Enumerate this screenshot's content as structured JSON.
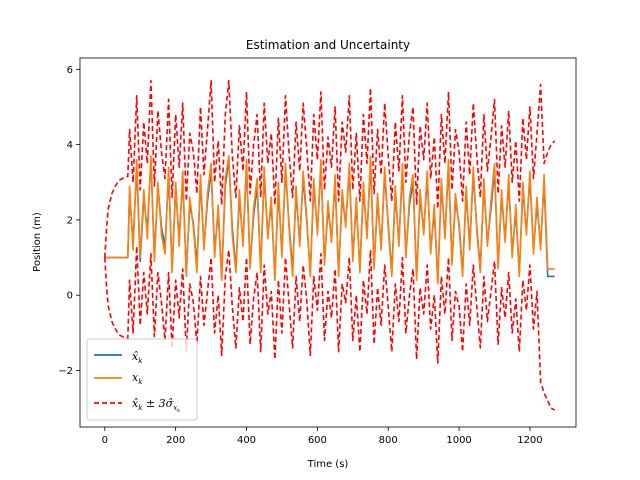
{
  "chart_data": {
    "type": "line",
    "title": "Estimation and Uncertainty",
    "xlabel": "Time (s)",
    "ylabel": "Position (m)",
    "xlim": [
      -70,
      1330
    ],
    "ylim": [
      -3.5,
      6.3
    ],
    "x_ticks": [
      0,
      200,
      400,
      600,
      800,
      1000,
      1200
    ],
    "y_ticks": [
      -2,
      0,
      2,
      4,
      6
    ],
    "grid": false,
    "legend_position": "lower-left",
    "series": [
      {
        "name": "x̂_k",
        "color": "#1f77b4",
        "style": "solid",
        "x": [
          0,
          65,
          70,
          80,
          90,
          100,
          110,
          120,
          130,
          140,
          150,
          160,
          170,
          180,
          190,
          200,
          210,
          220,
          230,
          240,
          250,
          260,
          270,
          280,
          290,
          300,
          310,
          320,
          330,
          340,
          350,
          360,
          370,
          380,
          390,
          400,
          410,
          420,
          430,
          440,
          450,
          460,
          470,
          480,
          490,
          500,
          510,
          520,
          530,
          540,
          550,
          560,
          570,
          580,
          590,
          600,
          610,
          620,
          630,
          640,
          650,
          660,
          670,
          680,
          690,
          700,
          710,
          720,
          730,
          740,
          750,
          760,
          770,
          780,
          790,
          800,
          810,
          820,
          830,
          840,
          850,
          860,
          870,
          880,
          890,
          900,
          910,
          920,
          930,
          940,
          950,
          960,
          970,
          980,
          990,
          1000,
          1010,
          1020,
          1030,
          1040,
          1050,
          1060,
          1070,
          1080,
          1090,
          1100,
          1110,
          1120,
          1130,
          1140,
          1150,
          1160,
          1170,
          1180,
          1190,
          1200,
          1210,
          1220,
          1230,
          1240,
          1250,
          1260,
          1270
        ],
        "y": [
          1.0,
          1.0,
          2.7,
          1.4,
          3.4,
          0.9,
          2.6,
          1.7,
          3.6,
          1.0,
          2.9,
          1.8,
          1.3,
          3.2,
          0.7,
          2.8,
          1.5,
          3.1,
          0.6,
          2.4,
          1.9,
          0.8,
          3.0,
          1.3,
          2.5,
          3.3,
          1.2,
          2.2,
          0.5,
          2.9,
          3.6,
          1.8,
          0.7,
          2.6,
          1.4,
          3.4,
          0.8,
          2.1,
          2.9,
          0.7,
          3.2,
          1.6,
          2.4,
          0.5,
          2.8,
          1.1,
          3.3,
          1.9,
          0.7,
          2.7,
          1.4,
          3.1,
          2.0,
          0.6,
          2.9,
          1.7,
          3.4,
          0.9,
          2.3,
          1.5,
          3.0,
          0.6,
          2.6,
          1.9,
          3.3,
          1.0,
          2.4,
          0.7,
          2.8,
          1.6,
          3.5,
          0.8,
          2.5,
          1.3,
          3.2,
          1.9,
          0.6,
          2.7,
          1.4,
          3.3,
          1.1,
          2.4,
          3.0,
          0.5,
          2.6,
          1.7,
          3.1,
          1.2,
          2.2,
          0.4,
          2.9,
          1.6,
          3.4,
          0.9,
          2.5,
          1.9,
          0.6,
          2.7,
          1.3,
          3.2,
          1.8,
          0.7,
          2.9,
          1.4,
          2.3,
          3.3,
          0.8,
          2.6,
          1.5,
          3.0,
          1.1,
          2.2,
          0.6,
          2.8,
          1.7,
          3.1,
          1.2,
          2.4,
          1.3,
          3.0,
          0.5,
          0.5,
          0.5
        ],
        "y_label_text": "x̂",
        "y_label_sub": "k"
      },
      {
        "name": "x_k",
        "color": "#ff7f0e",
        "style": "solid",
        "x": [
          0,
          65,
          70,
          80,
          90,
          100,
          110,
          120,
          130,
          140,
          150,
          160,
          170,
          180,
          190,
          200,
          210,
          220,
          230,
          240,
          250,
          260,
          270,
          280,
          290,
          300,
          310,
          320,
          330,
          340,
          350,
          360,
          370,
          380,
          390,
          400,
          410,
          420,
          430,
          440,
          450,
          460,
          470,
          480,
          490,
          500,
          510,
          520,
          530,
          540,
          550,
          560,
          570,
          580,
          590,
          600,
          610,
          620,
          630,
          640,
          650,
          660,
          670,
          680,
          690,
          700,
          710,
          720,
          730,
          740,
          750,
          760,
          770,
          780,
          790,
          800,
          810,
          820,
          830,
          840,
          850,
          860,
          870,
          880,
          890,
          900,
          910,
          920,
          930,
          940,
          950,
          960,
          970,
          980,
          990,
          1000,
          1010,
          1020,
          1030,
          1040,
          1050,
          1060,
          1070,
          1080,
          1090,
          1100,
          1110,
          1120,
          1130,
          1140,
          1150,
          1160,
          1170,
          1180,
          1190,
          1200,
          1210,
          1220,
          1230,
          1240,
          1250,
          1260,
          1270
        ],
        "y": [
          1.0,
          1.0,
          2.9,
          1.2,
          3.6,
          1.0,
          2.8,
          1.5,
          3.7,
          0.9,
          3.0,
          1.6,
          1.1,
          3.4,
          0.6,
          3.0,
          1.3,
          3.3,
          0.5,
          2.6,
          1.8,
          0.6,
          3.2,
          1.2,
          2.7,
          3.5,
          1.0,
          2.4,
          0.4,
          3.1,
          3.7,
          1.6,
          0.6,
          2.8,
          1.3,
          3.6,
          0.7,
          2.3,
          3.1,
          0.6,
          3.4,
          1.5,
          2.6,
          0.4,
          3.0,
          1.0,
          3.5,
          1.8,
          0.5,
          2.9,
          1.3,
          3.3,
          2.1,
          0.5,
          3.1,
          1.6,
          3.6,
          0.8,
          2.5,
          1.4,
          3.2,
          0.5,
          2.8,
          1.8,
          3.5,
          0.9,
          2.6,
          0.6,
          3.0,
          1.5,
          3.7,
          0.7,
          2.7,
          1.2,
          3.4,
          1.8,
          0.5,
          2.9,
          1.3,
          3.5,
          1.0,
          2.6,
          3.2,
          0.4,
          2.8,
          1.6,
          3.3,
          1.1,
          2.4,
          0.3,
          3.1,
          1.5,
          3.6,
          0.8,
          2.7,
          1.8,
          0.5,
          2.9,
          1.2,
          3.4,
          1.7,
          0.6,
          3.1,
          1.3,
          2.5,
          3.5,
          0.7,
          2.8,
          1.4,
          3.2,
          1.0,
          2.4,
          0.5,
          3.0,
          1.6,
          3.3,
          1.1,
          2.6,
          1.2,
          3.2,
          0.7,
          0.7,
          0.7
        ],
        "y_label_text": "x",
        "y_label_sub": "k"
      },
      {
        "name": "x̂_k ± 3σ̂_{x_k}",
        "color": "#ff0000",
        "style": "dashed",
        "x_upper": [
          0,
          5,
          10,
          20,
          30,
          40,
          50,
          60,
          65,
          70,
          80,
          90,
          100,
          110,
          120,
          130,
          140,
          150,
          160,
          170,
          180,
          190,
          200,
          210,
          220,
          230,
          240,
          250,
          260,
          270,
          280,
          290,
          300,
          310,
          320,
          330,
          340,
          350,
          360,
          370,
          380,
          390,
          400,
          410,
          420,
          430,
          440,
          450,
          460,
          470,
          480,
          490,
          500,
          510,
          520,
          530,
          540,
          550,
          560,
          570,
          580,
          590,
          600,
          610,
          620,
          630,
          640,
          650,
          660,
          670,
          680,
          690,
          700,
          710,
          720,
          730,
          740,
          750,
          760,
          770,
          780,
          790,
          800,
          810,
          820,
          830,
          840,
          850,
          860,
          870,
          880,
          890,
          900,
          910,
          920,
          930,
          940,
          950,
          960,
          970,
          980,
          990,
          1000,
          1010,
          1020,
          1030,
          1040,
          1050,
          1060,
          1070,
          1080,
          1090,
          1100,
          1110,
          1120,
          1130,
          1140,
          1150,
          1160,
          1170,
          1180,
          1190,
          1200,
          1210,
          1220,
          1230,
          1240,
          1250,
          1260,
          1270
        ],
        "y_upper": [
          1.0,
          1.8,
          2.3,
          2.7,
          2.9,
          3.05,
          3.1,
          3.15,
          3.15,
          4.4,
          3.0,
          5.3,
          2.8,
          4.6,
          3.5,
          5.7,
          2.9,
          4.9,
          3.8,
          3.1,
          5.2,
          2.6,
          4.8,
          3.4,
          5.1,
          2.5,
          4.3,
          3.8,
          2.7,
          5.0,
          3.2,
          4.4,
          5.7,
          3.0,
          4.1,
          2.4,
          4.8,
          5.7,
          3.7,
          2.6,
          4.5,
          3.3,
          5.4,
          2.7,
          4.0,
          4.8,
          2.6,
          5.1,
          3.5,
          4.3,
          2.4,
          4.7,
          3.0,
          5.3,
          3.8,
          2.6,
          4.6,
          3.3,
          5.1,
          3.9,
          2.5,
          4.8,
          3.6,
          5.4,
          2.8,
          4.2,
          3.4,
          5.0,
          2.5,
          4.6,
          3.8,
          5.3,
          2.8,
          4.3,
          2.5,
          4.8,
          3.5,
          5.5,
          2.7,
          4.4,
          3.2,
          5.1,
          3.7,
          2.5,
          4.6,
          3.3,
          5.3,
          3.0,
          4.3,
          5.0,
          2.4,
          4.5,
          3.6,
          5.1,
          3.1,
          4.2,
          2.3,
          4.8,
          3.5,
          5.4,
          2.8,
          4.4,
          3.8,
          2.5,
          4.6,
          3.2,
          5.1,
          3.7,
          2.6,
          4.8,
          3.3,
          4.2,
          5.2,
          2.7,
          4.5,
          3.4,
          4.9,
          3.0,
          4.1,
          2.5,
          4.7,
          3.6,
          5.0,
          3.1,
          4.3,
          5.6,
          3.5,
          3.8,
          4.0,
          4.1
        ],
        "x_lower": [
          0,
          5,
          10,
          20,
          30,
          40,
          50,
          60,
          65,
          70,
          80,
          90,
          100,
          110,
          120,
          130,
          140,
          150,
          160,
          170,
          180,
          190,
          200,
          210,
          220,
          230,
          240,
          250,
          260,
          270,
          280,
          290,
          300,
          310,
          320,
          330,
          340,
          350,
          360,
          370,
          380,
          390,
          400,
          410,
          420,
          430,
          440,
          450,
          460,
          470,
          480,
          490,
          500,
          510,
          520,
          530,
          540,
          550,
          560,
          570,
          580,
          590,
          600,
          610,
          620,
          630,
          640,
          650,
          660,
          670,
          680,
          690,
          700,
          710,
          720,
          730,
          740,
          750,
          760,
          770,
          780,
          790,
          800,
          810,
          820,
          830,
          840,
          850,
          860,
          870,
          880,
          890,
          900,
          910,
          920,
          930,
          940,
          950,
          960,
          970,
          980,
          990,
          1000,
          1010,
          1020,
          1030,
          1040,
          1050,
          1060,
          1070,
          1080,
          1090,
          1100,
          1110,
          1120,
          1130,
          1140,
          1150,
          1160,
          1170,
          1180,
          1190,
          1200,
          1210,
          1220,
          1230,
          1240,
          1250,
          1260,
          1270
        ],
        "y_lower": [
          1.0,
          0.2,
          -0.3,
          -0.7,
          -0.9,
          -1.05,
          -1.1,
          -1.15,
          -1.15,
          0.4,
          -1.0,
          1.3,
          -0.8,
          0.6,
          -0.5,
          1.1,
          -1.1,
          0.6,
          -0.2,
          -1.2,
          0.6,
          -1.4,
          0.4,
          -0.6,
          0.7,
          -1.5,
          0.3,
          -0.2,
          -1.3,
          0.5,
          -0.8,
          0.1,
          1.0,
          -1.0,
          0.0,
          -1.6,
          0.5,
          1.2,
          -0.3,
          -1.4,
          0.2,
          -0.7,
          1.0,
          -1.3,
          -0.1,
          0.6,
          -1.5,
          0.8,
          -0.5,
          0.1,
          -1.7,
          0.4,
          -1.0,
          1.0,
          -0.2,
          -1.4,
          0.5,
          -0.7,
          0.8,
          -0.1,
          -1.6,
          0.5,
          -0.4,
          1.1,
          -1.2,
          0.1,
          -0.6,
          0.7,
          -1.5,
          0.3,
          -0.2,
          1.0,
          -1.2,
          0.0,
          -1.5,
          0.4,
          -0.5,
          1.2,
          -1.3,
          0.2,
          -0.8,
          0.8,
          -0.3,
          -1.5,
          0.3,
          -0.7,
          1.0,
          -1.0,
          0.0,
          0.7,
          -1.7,
          0.2,
          -0.5,
          0.8,
          -0.9,
          0.0,
          -1.8,
          0.5,
          -0.5,
          1.0,
          -1.2,
          0.1,
          -0.3,
          -1.5,
          0.3,
          -0.8,
          0.8,
          -0.3,
          -1.4,
          0.5,
          -0.7,
          0.1,
          0.9,
          -1.3,
          0.2,
          -0.6,
          0.6,
          -1.0,
          -0.1,
          -1.5,
          0.4,
          -0.4,
          0.8,
          -0.9,
          0.1,
          -2.3,
          -2.6,
          -2.8,
          -3.0,
          -3.05
        ],
        "y_label_text": "x̂",
        "y_label_sub": "k",
        "y_label_suffix": " ± 3σ̂",
        "y_label_sub2": "x",
        "y_label_sub3": "k"
      }
    ]
  }
}
